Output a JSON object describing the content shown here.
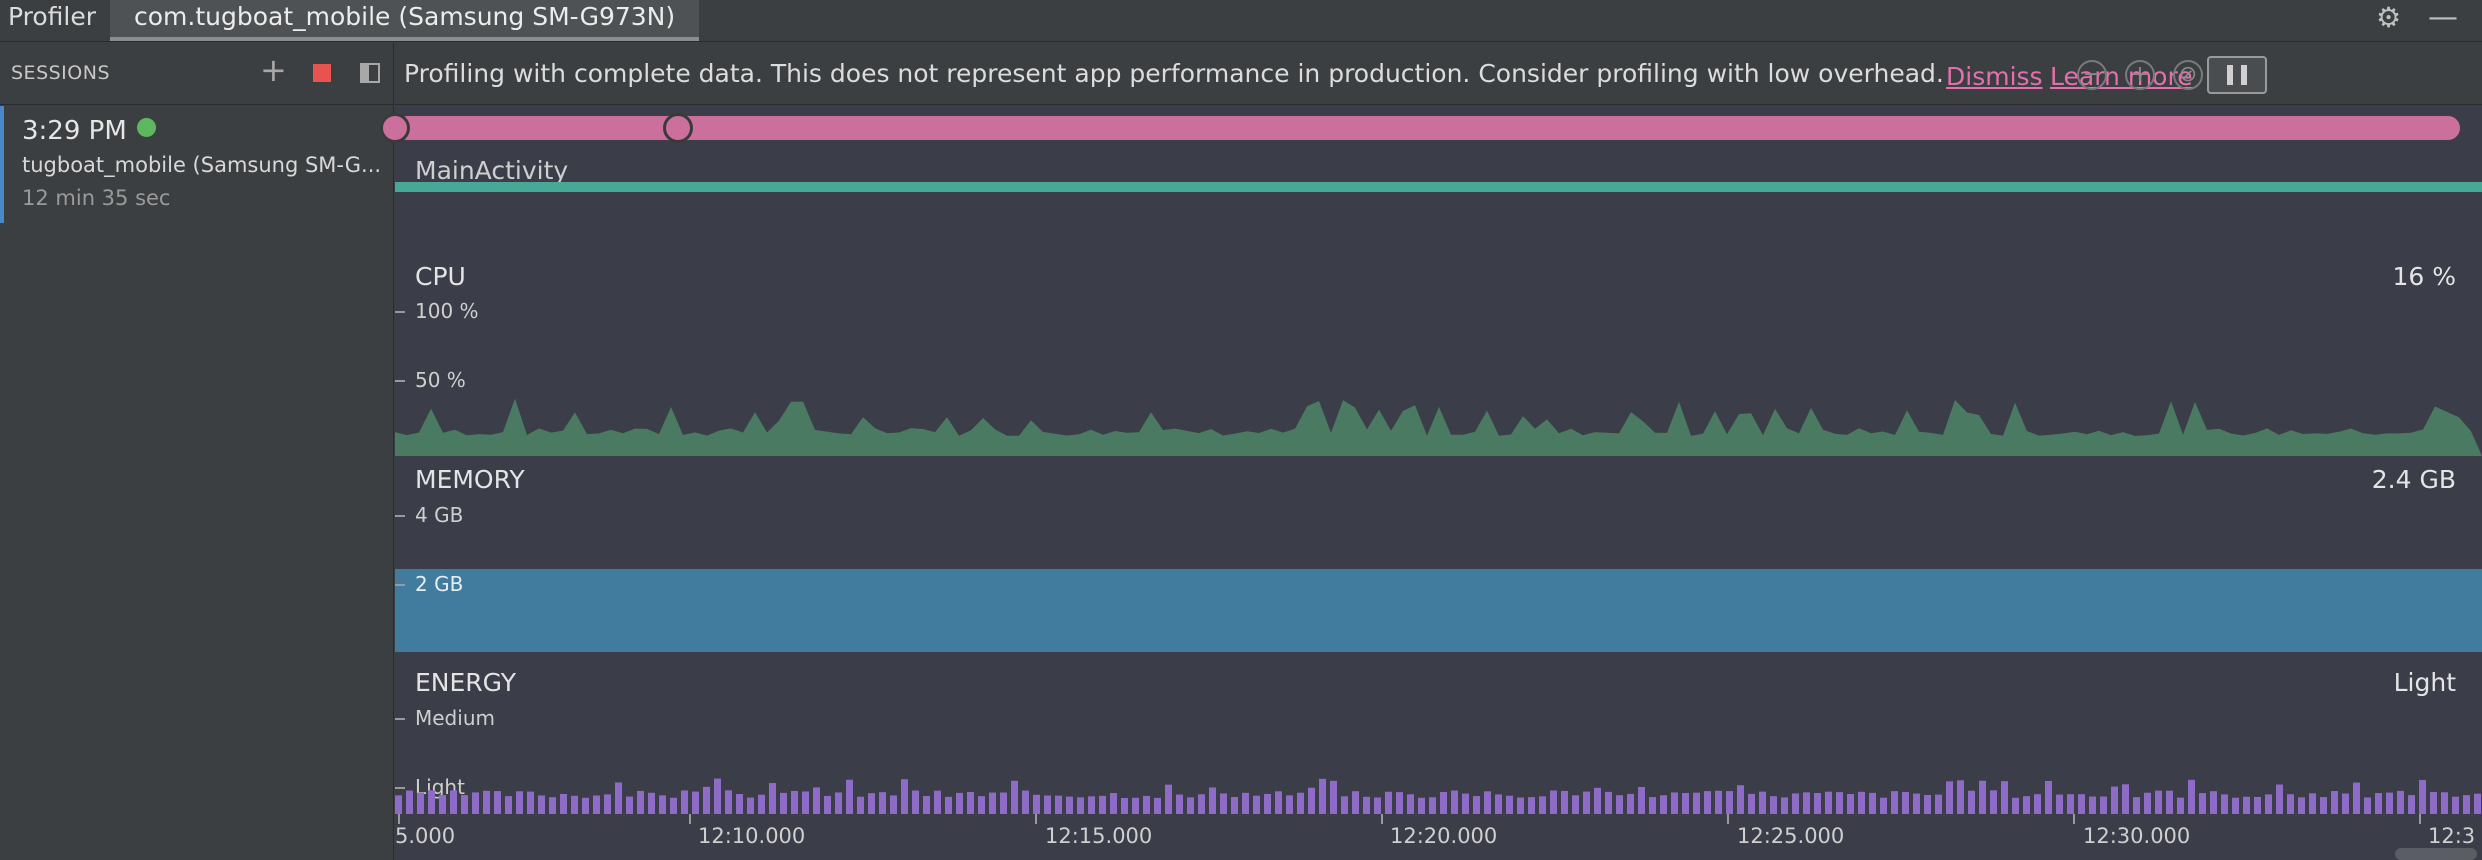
{
  "topbar": {
    "profiler_tab": "Profiler",
    "device_tab": "com.tugboat_mobile (Samsung SM-G973N)",
    "settings_icon": "gear-icon",
    "minimize_icon": "minimize-icon"
  },
  "sessions": {
    "title": "SESSIONS",
    "add_icon": "plus-icon",
    "stop_icon": "stop-icon",
    "panel_icon": "collapse-panel-icon",
    "items": [
      {
        "time": "3:29 PM",
        "status_color": "#5fb85f",
        "name": "tugboat_mobile (Samsung SM-G...",
        "duration": "12 min 35 sec"
      }
    ]
  },
  "banner": {
    "message": "Profiling with complete data. This does not represent app performance in production. Consider profiling with low overhead.",
    "dismiss": "Dismiss",
    "learn_more": "Learn more",
    "controls": [
      "zoom-out-icon",
      "zoom-in-icon",
      "reset-zoom-icon",
      "attach-icon",
      "pause-icon"
    ]
  },
  "timeline": {
    "activity": "MainActivity",
    "cpu": {
      "title": "CPU",
      "value": "16 %",
      "axis": [
        "100 %",
        "50 %"
      ]
    },
    "memory": {
      "title": "MEMORY",
      "value": "2.4 GB",
      "axis": [
        "4 GB",
        "2 GB"
      ]
    },
    "energy": {
      "title": "ENERGY",
      "value": "Light",
      "axis": [
        "Medium",
        "Light"
      ]
    },
    "time_labels": [
      "5.000",
      "12:10.000",
      "12:15.000",
      "12:20.000",
      "12:25.000",
      "12:30.000",
      "12:3"
    ]
  },
  "colors": {
    "range": "#cb709c",
    "activity": "#48a898",
    "cpu": "#4a7a62",
    "memory": "#417c9f",
    "energy": "#8d6bc7",
    "link": "#e56fae"
  }
}
